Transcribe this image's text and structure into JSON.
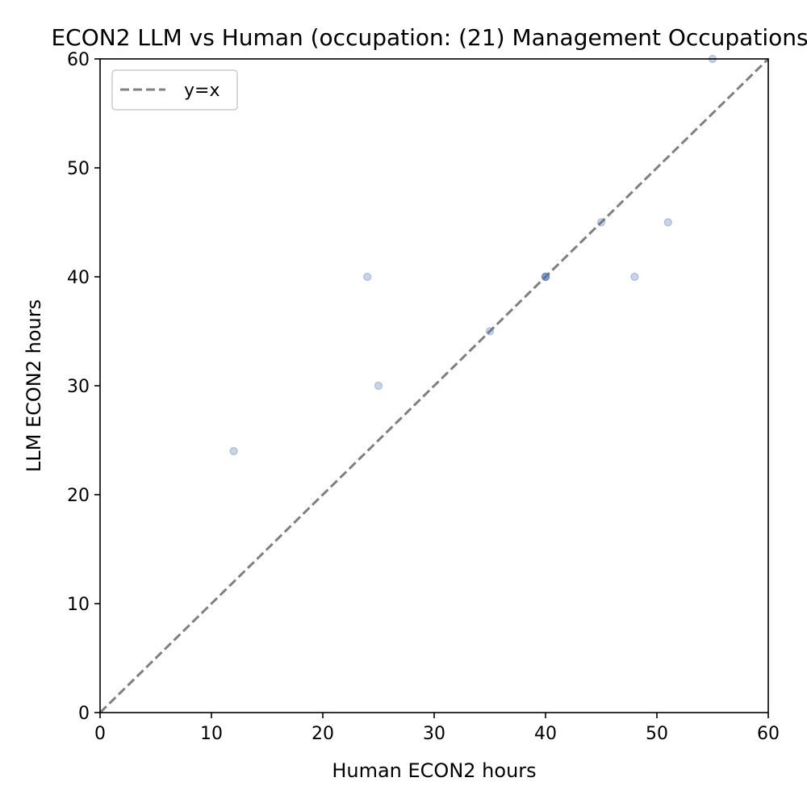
{
  "chart_data": {
    "type": "scatter",
    "title": "ECON2 LLM vs Human (occupation: (21) Management Occupations)",
    "xlabel": "Human ECON2 hours",
    "ylabel": "LLM ECON2 hours",
    "xlim": [
      0,
      60
    ],
    "ylim": [
      0,
      60
    ],
    "xticks": [
      0,
      10,
      20,
      30,
      40,
      50,
      60
    ],
    "yticks": [
      0,
      10,
      20,
      30,
      40,
      50,
      60
    ],
    "grid": false,
    "legend": {
      "placement": "upper-left",
      "entries": [
        "y=x"
      ]
    },
    "reference_line": {
      "label": "y=x",
      "style": "dashed",
      "color": "#808080"
    },
    "series": [
      {
        "color": "#4c72b0",
        "points": [
          {
            "x": 12,
            "y": 24
          },
          {
            "x": 24,
            "y": 40
          },
          {
            "x": 25,
            "y": 30
          },
          {
            "x": 35,
            "y": 35
          },
          {
            "x": 40,
            "y": 40
          },
          {
            "x": 40,
            "y": 40
          },
          {
            "x": 40,
            "y": 40
          },
          {
            "x": 45,
            "y": 45
          },
          {
            "x": 48,
            "y": 40
          },
          {
            "x": 51,
            "y": 45
          },
          {
            "x": 55,
            "y": 60
          }
        ]
      }
    ]
  }
}
